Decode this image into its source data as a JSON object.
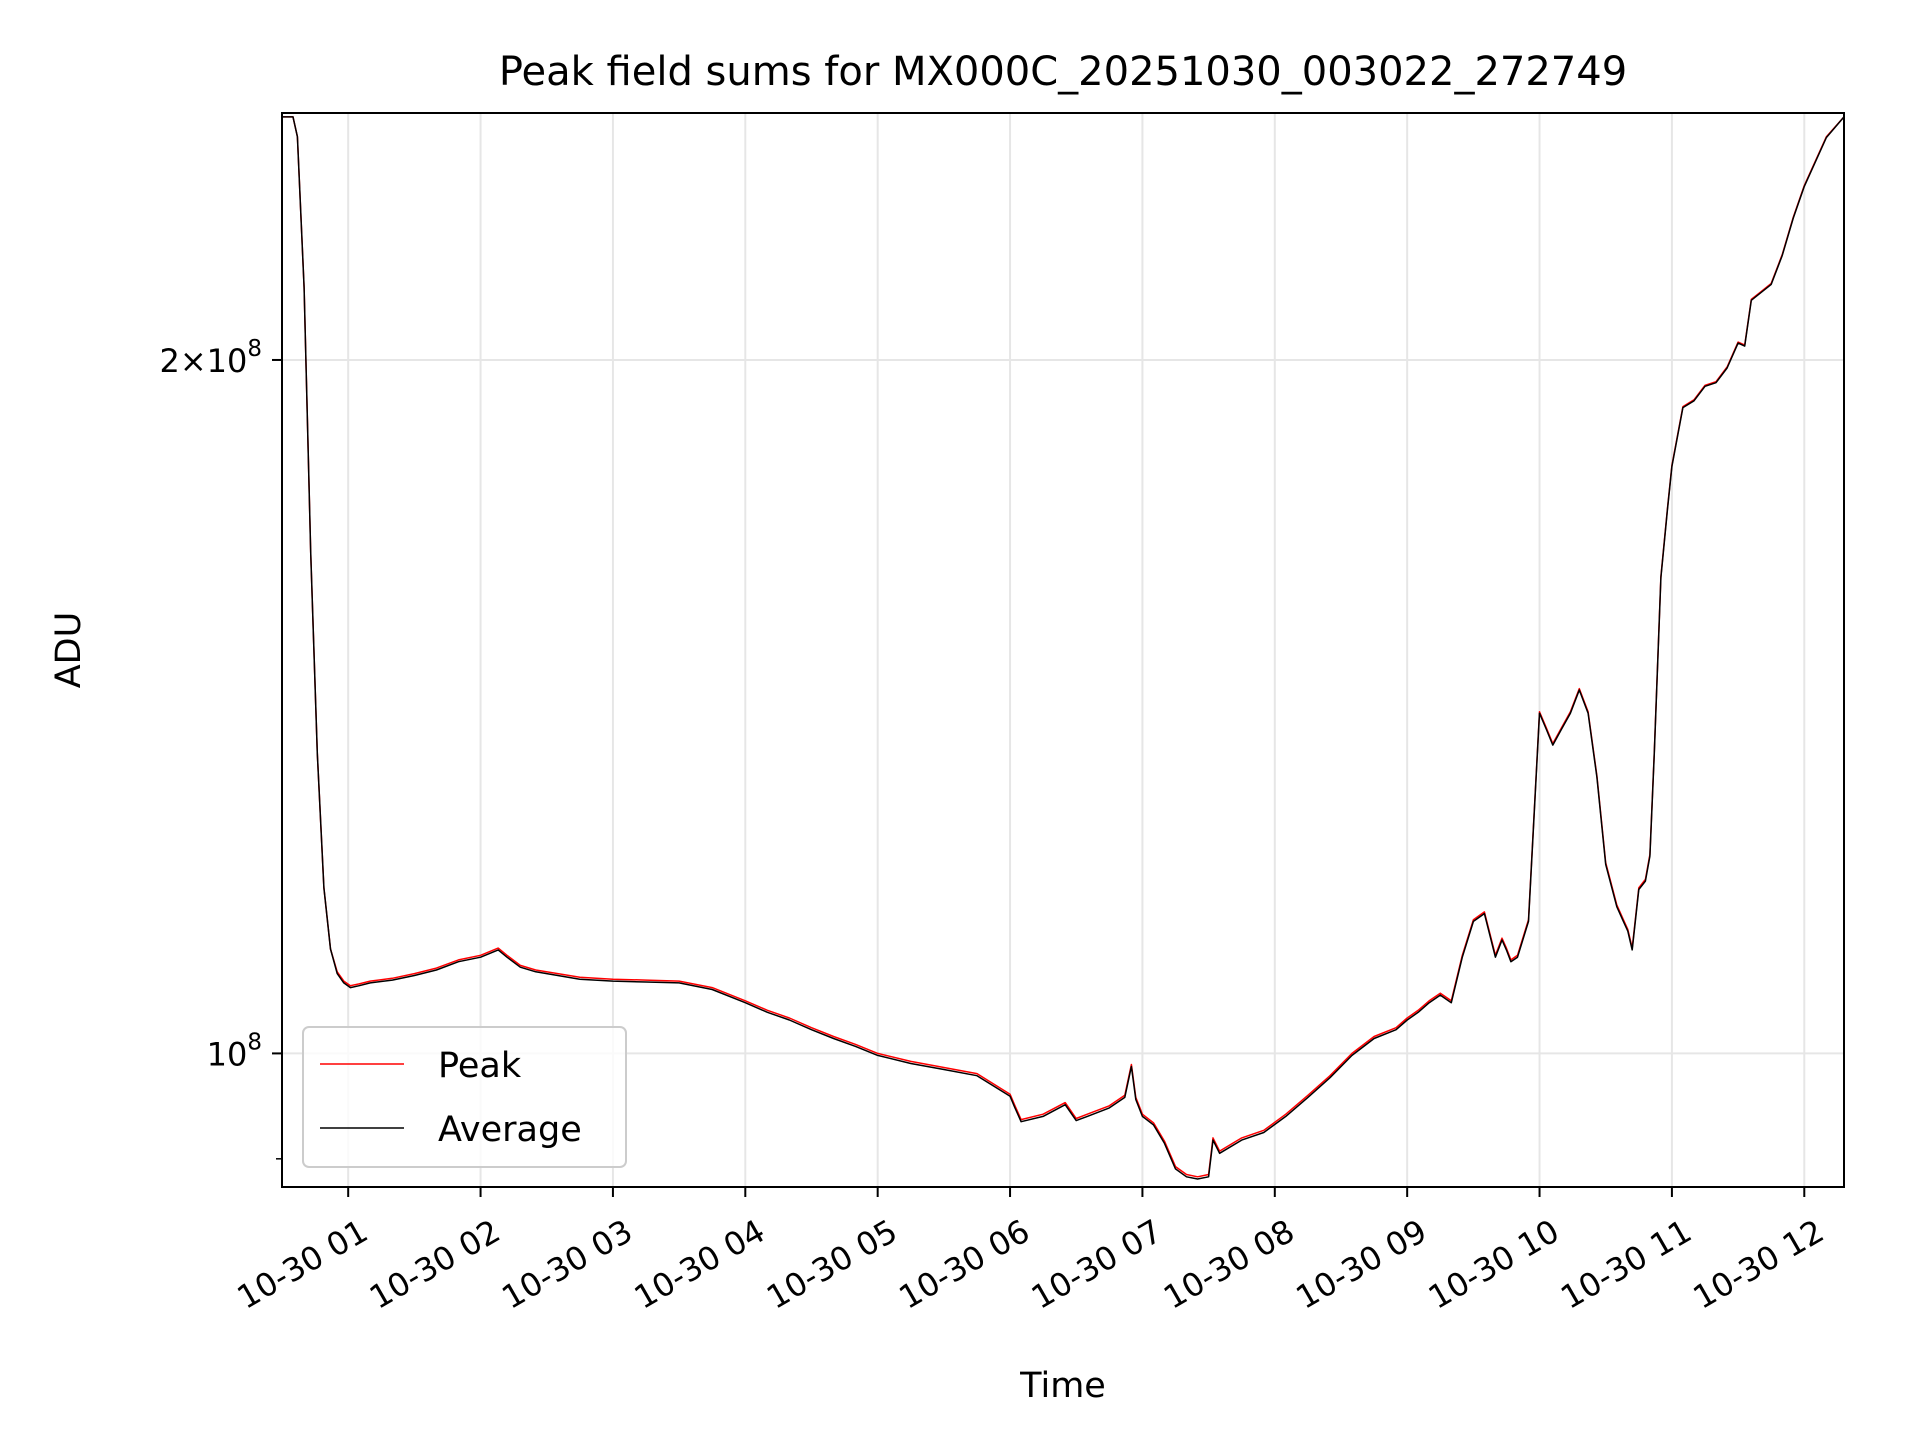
{
  "chart_data": {
    "type": "line",
    "title": "Peak field sums for MX000C_20251030_003022_272749",
    "xlabel": "Time",
    "ylabel": "ADU",
    "y_scale": "log",
    "grid": true,
    "legend_position": "lower-left",
    "xlim": [
      "2025-10-30 00:30",
      "2025-10-30 12:18"
    ],
    "ylim": [
      87500000,
      256000000
    ],
    "x_ticks": [
      {
        "time": "2025-10-30 01:00",
        "label": "10-30 01"
      },
      {
        "time": "2025-10-30 02:00",
        "label": "10-30 02"
      },
      {
        "time": "2025-10-30 03:00",
        "label": "10-30 03"
      },
      {
        "time": "2025-10-30 04:00",
        "label": "10-30 04"
      },
      {
        "time": "2025-10-30 05:00",
        "label": "10-30 05"
      },
      {
        "time": "2025-10-30 06:00",
        "label": "10-30 06"
      },
      {
        "time": "2025-10-30 07:00",
        "label": "10-30 07"
      },
      {
        "time": "2025-10-30 08:00",
        "label": "10-30 08"
      },
      {
        "time": "2025-10-30 09:00",
        "label": "10-30 09"
      },
      {
        "time": "2025-10-30 10:00",
        "label": "10-30 10"
      },
      {
        "time": "2025-10-30 11:00",
        "label": "10-30 11"
      },
      {
        "time": "2025-10-30 12:00",
        "label": "10-30 12"
      }
    ],
    "y_ticks": [
      {
        "value": 100000000,
        "base": "10",
        "exp": "8"
      },
      {
        "value": 200000000,
        "base": "2×10",
        "exp": "8"
      }
    ],
    "y_minor_ticks": [
      90000000
    ],
    "series": [
      {
        "name": "Peak",
        "color": "#ff0000",
        "x": [
          "2025-10-30 00:30",
          "2025-10-30 00:35",
          "2025-10-30 00:37",
          "2025-10-30 00:40",
          "2025-10-30 00:43",
          "2025-10-30 00:46",
          "2025-10-30 00:49",
          "2025-10-30 00:52",
          "2025-10-30 00:55",
          "2025-10-30 00:58",
          "2025-10-30 01:01",
          "2025-10-30 01:05",
          "2025-10-30 01:10",
          "2025-10-30 01:20",
          "2025-10-30 01:30",
          "2025-10-30 01:40",
          "2025-10-30 01:50",
          "2025-10-30 02:00",
          "2025-10-30 02:08",
          "2025-10-30 02:12",
          "2025-10-30 02:18",
          "2025-10-30 02:25",
          "2025-10-30 02:35",
          "2025-10-30 02:45",
          "2025-10-30 03:00",
          "2025-10-30 03:15",
          "2025-10-30 03:30",
          "2025-10-30 03:45",
          "2025-10-30 04:00",
          "2025-10-30 04:10",
          "2025-10-30 04:20",
          "2025-10-30 04:30",
          "2025-10-30 04:40",
          "2025-10-30 04:50",
          "2025-10-30 05:00",
          "2025-10-30 05:15",
          "2025-10-30 05:30",
          "2025-10-30 05:45",
          "2025-10-30 06:00",
          "2025-10-30 06:02",
          "2025-10-30 06:05",
          "2025-10-30 06:15",
          "2025-10-30 06:25",
          "2025-10-30 06:30",
          "2025-10-30 06:35",
          "2025-10-30 06:45",
          "2025-10-30 06:52",
          "2025-10-30 06:55",
          "2025-10-30 06:57",
          "2025-10-30 07:00",
          "2025-10-30 07:05",
          "2025-10-30 07:10",
          "2025-10-30 07:15",
          "2025-10-30 07:20",
          "2025-10-30 07:25",
          "2025-10-30 07:30",
          "2025-10-30 07:32",
          "2025-10-30 07:35",
          "2025-10-30 07:45",
          "2025-10-30 07:55",
          "2025-10-30 08:05",
          "2025-10-30 08:15",
          "2025-10-30 08:25",
          "2025-10-30 08:35",
          "2025-10-30 08:45",
          "2025-10-30 08:55",
          "2025-10-30 09:00",
          "2025-10-30 09:05",
          "2025-10-30 09:10",
          "2025-10-30 09:15",
          "2025-10-30 09:20",
          "2025-10-30 09:25",
          "2025-10-30 09:30",
          "2025-10-30 09:35",
          "2025-10-30 09:40",
          "2025-10-30 09:43",
          "2025-10-30 09:45",
          "2025-10-30 09:47",
          "2025-10-30 09:50",
          "2025-10-30 09:55",
          "2025-10-30 10:00",
          "2025-10-30 10:03",
          "2025-10-30 10:06",
          "2025-10-30 10:10",
          "2025-10-30 10:14",
          "2025-10-30 10:18",
          "2025-10-30 10:22",
          "2025-10-30 10:26",
          "2025-10-30 10:30",
          "2025-10-30 10:35",
          "2025-10-30 10:38",
          "2025-10-30 10:40",
          "2025-10-30 10:42",
          "2025-10-30 10:45",
          "2025-10-30 10:48",
          "2025-10-30 10:50",
          "2025-10-30 10:52",
          "2025-10-30 10:55",
          "2025-10-30 10:58",
          "2025-10-30 11:00",
          "2025-10-30 11:05",
          "2025-10-30 11:10",
          "2025-10-30 11:15",
          "2025-10-30 11:20",
          "2025-10-30 11:25",
          "2025-10-30 11:30",
          "2025-10-30 11:33",
          "2025-10-30 11:36",
          "2025-10-30 11:40",
          "2025-10-30 11:45",
          "2025-10-30 11:50",
          "2025-10-30 11:55",
          "2025-10-30 12:00",
          "2025-10-30 12:10",
          "2025-10-30 12:18"
        ],
        "y": [
          255000000,
          255000000,
          250000000,
          215000000,
          165000000,
          135000000,
          118000000,
          111000000,
          108500000,
          107500000,
          107000000,
          107200000,
          107500000,
          107800000,
          108300000,
          108900000,
          109800000,
          110300000,
          111100000,
          110300000,
          109200000,
          108700000,
          108300000,
          107900000,
          107700000,
          107600000,
          107500000,
          106800000,
          105400000,
          104400000,
          103600000,
          102600000,
          101700000,
          100900000,
          100000000,
          99200000,
          98600000,
          98000000,
          96000000,
          95000000,
          93600000,
          94100000,
          95200000,
          93700000,
          94100000,
          94900000,
          95900000,
          98900000,
          95700000,
          94100000,
          93300000,
          91600000,
          89300000,
          88600000,
          88400000,
          88600000,
          91900000,
          90700000,
          91900000,
          92600000,
          94100000,
          95900000,
          97800000,
          100000000,
          101700000,
          102600000,
          103600000,
          104400000,
          105400000,
          106200000,
          105400000,
          110300000,
          114300000,
          115200000,
          110300000,
          112200000,
          111100000,
          109800000,
          110300000,
          114300000,
          140700000,
          138500000,
          136300000,
          138500000,
          140700000,
          144000000,
          140700000,
          132000000,
          121000000,
          116000000,
          114300000,
          113200000,
          111100000,
          118000000,
          119000000,
          122000000,
          135200000,
          161100000,
          172500000,
          180000000,
          190900000,
          192200000,
          195000000,
          195700000,
          198600000,
          203600000,
          203000000,
          212500000,
          214000000,
          215900000,
          222200000,
          230700000,
          238100000,
          250000000,
          255000000
        ]
      },
      {
        "name": "Average",
        "color": "#000000",
        "x": [
          "2025-10-30 00:30",
          "2025-10-30 00:35",
          "2025-10-30 00:37",
          "2025-10-30 00:40",
          "2025-10-30 00:43",
          "2025-10-30 00:46",
          "2025-10-30 00:49",
          "2025-10-30 00:52",
          "2025-10-30 00:55",
          "2025-10-30 00:58",
          "2025-10-30 01:01",
          "2025-10-30 01:05",
          "2025-10-30 01:10",
          "2025-10-30 01:20",
          "2025-10-30 01:30",
          "2025-10-30 01:40",
          "2025-10-30 01:50",
          "2025-10-30 02:00",
          "2025-10-30 02:08",
          "2025-10-30 02:12",
          "2025-10-30 02:18",
          "2025-10-30 02:25",
          "2025-10-30 02:35",
          "2025-10-30 02:45",
          "2025-10-30 03:00",
          "2025-10-30 03:15",
          "2025-10-30 03:30",
          "2025-10-30 03:45",
          "2025-10-30 04:00",
          "2025-10-30 04:10",
          "2025-10-30 04:20",
          "2025-10-30 04:30",
          "2025-10-30 04:40",
          "2025-10-30 04:50",
          "2025-10-30 05:00",
          "2025-10-30 05:15",
          "2025-10-30 05:30",
          "2025-10-30 05:45",
          "2025-10-30 06:00",
          "2025-10-30 06:02",
          "2025-10-30 06:05",
          "2025-10-30 06:15",
          "2025-10-30 06:25",
          "2025-10-30 06:30",
          "2025-10-30 06:35",
          "2025-10-30 06:45",
          "2025-10-30 06:52",
          "2025-10-30 06:55",
          "2025-10-30 06:57",
          "2025-10-30 07:00",
          "2025-10-30 07:05",
          "2025-10-30 07:10",
          "2025-10-30 07:15",
          "2025-10-30 07:20",
          "2025-10-30 07:25",
          "2025-10-30 07:30",
          "2025-10-30 07:32",
          "2025-10-30 07:35",
          "2025-10-30 07:45",
          "2025-10-30 07:55",
          "2025-10-30 08:05",
          "2025-10-30 08:15",
          "2025-10-30 08:25",
          "2025-10-30 08:35",
          "2025-10-30 08:45",
          "2025-10-30 08:55",
          "2025-10-30 09:00",
          "2025-10-30 09:05",
          "2025-10-30 09:10",
          "2025-10-30 09:15",
          "2025-10-30 09:20",
          "2025-10-30 09:25",
          "2025-10-30 09:30",
          "2025-10-30 09:35",
          "2025-10-30 09:40",
          "2025-10-30 09:43",
          "2025-10-30 09:45",
          "2025-10-30 09:47",
          "2025-10-30 09:50",
          "2025-10-30 09:55",
          "2025-10-30 10:00",
          "2025-10-30 10:03",
          "2025-10-30 10:06",
          "2025-10-30 10:10",
          "2025-10-30 10:14",
          "2025-10-30 10:18",
          "2025-10-30 10:22",
          "2025-10-30 10:26",
          "2025-10-30 10:30",
          "2025-10-30 10:35",
          "2025-10-30 10:38",
          "2025-10-30 10:40",
          "2025-10-30 10:42",
          "2025-10-30 10:45",
          "2025-10-30 10:48",
          "2025-10-30 10:50",
          "2025-10-30 10:52",
          "2025-10-30 10:55",
          "2025-10-30 10:58",
          "2025-10-30 11:00",
          "2025-10-30 11:05",
          "2025-10-30 11:10",
          "2025-10-30 11:15",
          "2025-10-30 11:20",
          "2025-10-30 11:25",
          "2025-10-30 11:30",
          "2025-10-30 11:33",
          "2025-10-30 11:36",
          "2025-10-30 11:40",
          "2025-10-30 11:45",
          "2025-10-30 11:50",
          "2025-10-30 11:55",
          "2025-10-30 12:00",
          "2025-10-30 12:10",
          "2025-10-30 12:18"
        ],
        "y": [
          255000000,
          255000000,
          250000000,
          215000000,
          165000000,
          135000000,
          118000000,
          111000000,
          108300000,
          107300000,
          106800000,
          107000000,
          107300000,
          107600000,
          108100000,
          108700000,
          109600000,
          110100000,
          110900000,
          110100000,
          109000000,
          108500000,
          108100000,
          107700000,
          107500000,
          107400000,
          107300000,
          106600000,
          105200000,
          104200000,
          103400000,
          102400000,
          101500000,
          100700000,
          99800000,
          99000000,
          98400000,
          97800000,
          95800000,
          94800000,
          93400000,
          93900000,
          95000000,
          93500000,
          93900000,
          94700000,
          95700000,
          98700000,
          95500000,
          93900000,
          93100000,
          91400000,
          89100000,
          88400000,
          88200000,
          88400000,
          91700000,
          90500000,
          91700000,
          92400000,
          93900000,
          95700000,
          97600000,
          99800000,
          101500000,
          102400000,
          103400000,
          104200000,
          105200000,
          106000000,
          105200000,
          110100000,
          114100000,
          115000000,
          110100000,
          112000000,
          110900000,
          109600000,
          110100000,
          114100000,
          140500000,
          138300000,
          136100000,
          138300000,
          140500000,
          143800000,
          140500000,
          131800000,
          120800000,
          115800000,
          114100000,
          113000000,
          110900000,
          117800000,
          118800000,
          121800000,
          135000000,
          160900000,
          172300000,
          179800000,
          190700000,
          192000000,
          194800000,
          195500000,
          198400000,
          203400000,
          202800000,
          212300000,
          213800000,
          215700000,
          222000000,
          230500000,
          237900000,
          249800000,
          255000000
        ]
      }
    ]
  }
}
